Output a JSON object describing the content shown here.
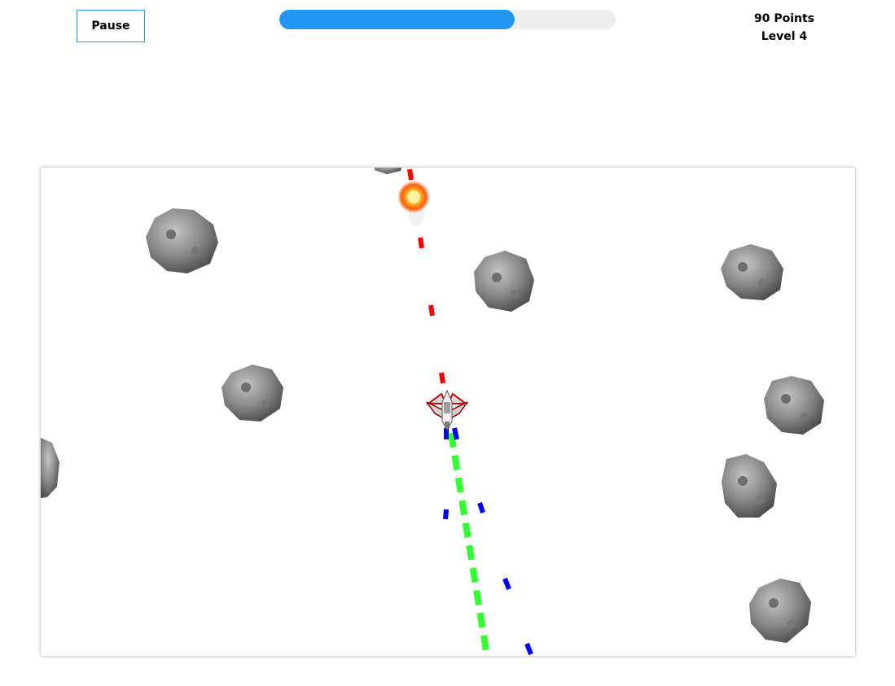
{
  "header": {
    "pause_label": "Pause",
    "progress": 0.7,
    "points_text": "90 Points",
    "level_text": "Level 4"
  },
  "colors": {
    "accent": "#2196f3",
    "progress_track": "#eeeeee",
    "enemy_laser": "#ff0000",
    "player_beam": "#33ff33",
    "player_bullets": "#0000ff"
  },
  "game": {
    "asteroid_count": 10,
    "icons": [
      "asteroid-icon",
      "spaceship-icon",
      "explosion-icon"
    ]
  }
}
